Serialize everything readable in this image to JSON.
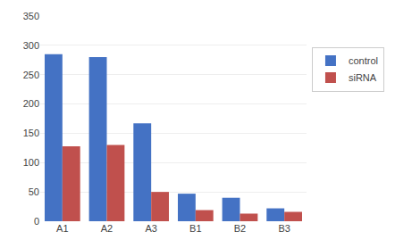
{
  "chart_data": {
    "type": "bar",
    "categories": [
      "A1",
      "A2",
      "A3",
      "B1",
      "B2",
      "B3"
    ],
    "series": [
      {
        "name": "control",
        "color": "#4472C4",
        "values": [
          285,
          280,
          167,
          47,
          40,
          22
        ]
      },
      {
        "name": "siRNA",
        "color": "#C0504D",
        "values": [
          128,
          130,
          50,
          19,
          13,
          16
        ]
      }
    ],
    "ylim": [
      0,
      350
    ],
    "yticks": [
      0,
      50,
      100,
      150,
      200,
      250,
      300,
      350
    ],
    "grid": true,
    "legend": "right"
  }
}
